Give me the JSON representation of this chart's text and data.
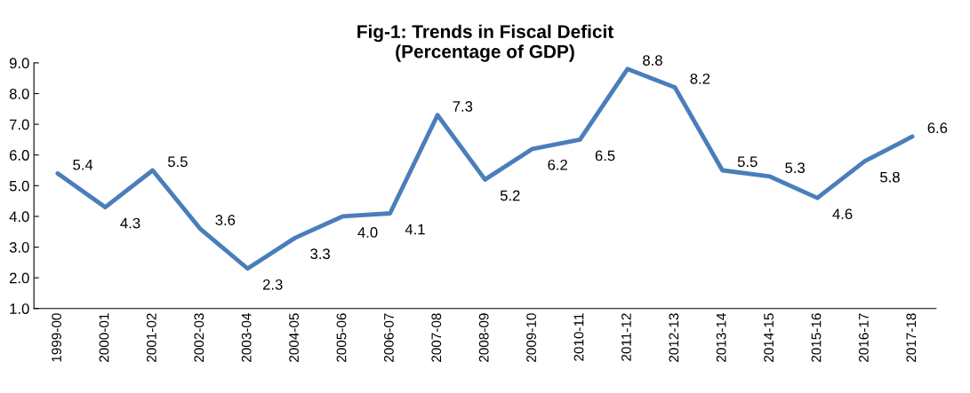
{
  "chart_data": {
    "type": "line",
    "title": "Fig-1: Trends in Fiscal Deficit\n(Percentage of GDP)",
    "categories": [
      "1999-00",
      "2000-01",
      "2001-02",
      "2002-03",
      "2003-04",
      "2004-05",
      "2005-06",
      "2006-07",
      "2007-08",
      "2008-09",
      "2009-10",
      "2010-11",
      "2011-12",
      "2012-13",
      "2013-14",
      "2014-15",
      "2015-16",
      "2016-17",
      "2017-18"
    ],
    "series": [
      {
        "color": "#4a7ebb",
        "values": [
          5.4,
          4.3,
          5.5,
          3.6,
          2.3,
          3.3,
          4.0,
          4.1,
          7.3,
          5.2,
          6.2,
          6.5,
          8.8,
          8.2,
          5.5,
          5.3,
          4.6,
          5.8,
          6.6
        ],
        "value_labels": [
          "5.4",
          "4.3",
          "5.5",
          "3.6",
          "2.3",
          "3.3",
          "4.0",
          "4.1",
          "7.3",
          "5.2",
          "6.2",
          "6.5",
          "8.8",
          "8.2",
          "5.5",
          "5.3",
          "4.6",
          "5.8",
          "6.6"
        ]
      }
    ],
    "ylim": [
      1.0,
      9.0
    ],
    "yticks": [
      {
        "value": 1.0,
        "label": "1.0"
      },
      {
        "value": 2.0,
        "label": "2.0"
      },
      {
        "value": 3.0,
        "label": "3.0"
      },
      {
        "value": 4.0,
        "label": "4.0"
      },
      {
        "value": 5.0,
        "label": "5.0"
      },
      {
        "value": 6.0,
        "label": "6.0"
      },
      {
        "value": 7.0,
        "label": "7.0"
      },
      {
        "value": 8.0,
        "label": "8.0"
      },
      {
        "value": 9.0,
        "label": "9.0"
      }
    ],
    "grid": false,
    "marker": "none",
    "line_style": "solid"
  }
}
